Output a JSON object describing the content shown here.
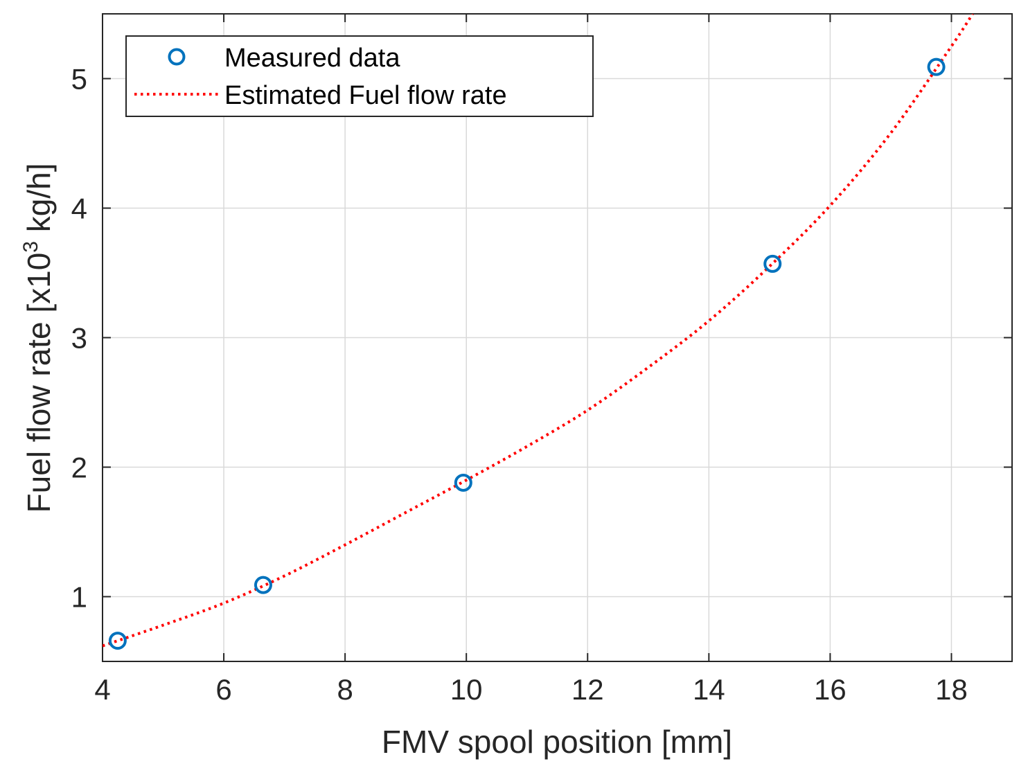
{
  "chart_data": {
    "type": "scatter",
    "title": "",
    "xlabel": "FMV spool position [mm]",
    "ylabel": {
      "prefix": "Fuel flow rate [x10",
      "superscript": "3",
      "suffix": " kg/h]"
    },
    "xlim": [
      4,
      19
    ],
    "ylim": [
      0.5,
      5.5
    ],
    "xticks": [
      4,
      6,
      8,
      10,
      12,
      14,
      16,
      18
    ],
    "yticks": [
      1,
      2,
      3,
      4,
      5
    ],
    "xtick_labels": [
      "4",
      "6",
      "8",
      "10",
      "12",
      "14",
      "16",
      "18"
    ],
    "ytick_labels": [
      "1",
      "2",
      "3",
      "4",
      "5"
    ],
    "grid": true,
    "legend_position": "top-left",
    "series": [
      {
        "name": "Measured data",
        "kind": "markers",
        "marker": "circle",
        "color": "#0072BD",
        "x": [
          4.25,
          6.65,
          9.95,
          15.05,
          17.75
        ],
        "y": [
          0.66,
          1.09,
          1.88,
          3.57,
          5.09
        ]
      },
      {
        "name": "Estimated Fuel flow rate",
        "kind": "line",
        "line_style": "dotted",
        "color": "#FF0000",
        "x": [
          4,
          5,
          6,
          7,
          8,
          9,
          10,
          11,
          12,
          13,
          14,
          15,
          16,
          17,
          18,
          18.35
        ],
        "y": [
          0.62,
          0.78,
          0.95,
          1.16,
          1.4,
          1.65,
          1.9,
          2.16,
          2.44,
          2.77,
          3.13,
          3.55,
          4.02,
          4.58,
          5.25,
          5.5
        ]
      }
    ]
  }
}
